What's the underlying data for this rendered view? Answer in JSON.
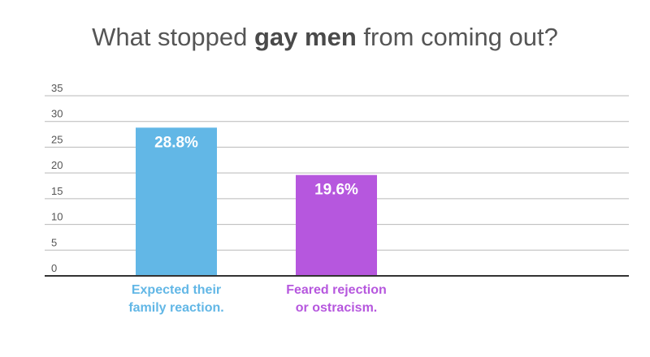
{
  "title": {
    "before": "What stopped ",
    "emphasis": "gay men",
    "after": " from coming out?"
  },
  "chart_data": {
    "type": "bar",
    "title": "What stopped gay men from coming out?",
    "categories": [
      "Expected their family reaction.",
      "Feared rejection or ostracism."
    ],
    "category_lines": [
      [
        "Expected their",
        "family reaction."
      ],
      [
        "Feared rejection",
        "or ostracism."
      ]
    ],
    "values": [
      28.8,
      19.6
    ],
    "value_labels": [
      "28.8%",
      "19.6%"
    ],
    "colors": [
      "#62b7e6",
      "#b657de"
    ],
    "xlabel": "",
    "ylabel": "",
    "ylim": [
      0,
      35
    ],
    "yticks": [
      0,
      5,
      10,
      15,
      20,
      25,
      30,
      35
    ],
    "grid": true,
    "legend": "none"
  }
}
